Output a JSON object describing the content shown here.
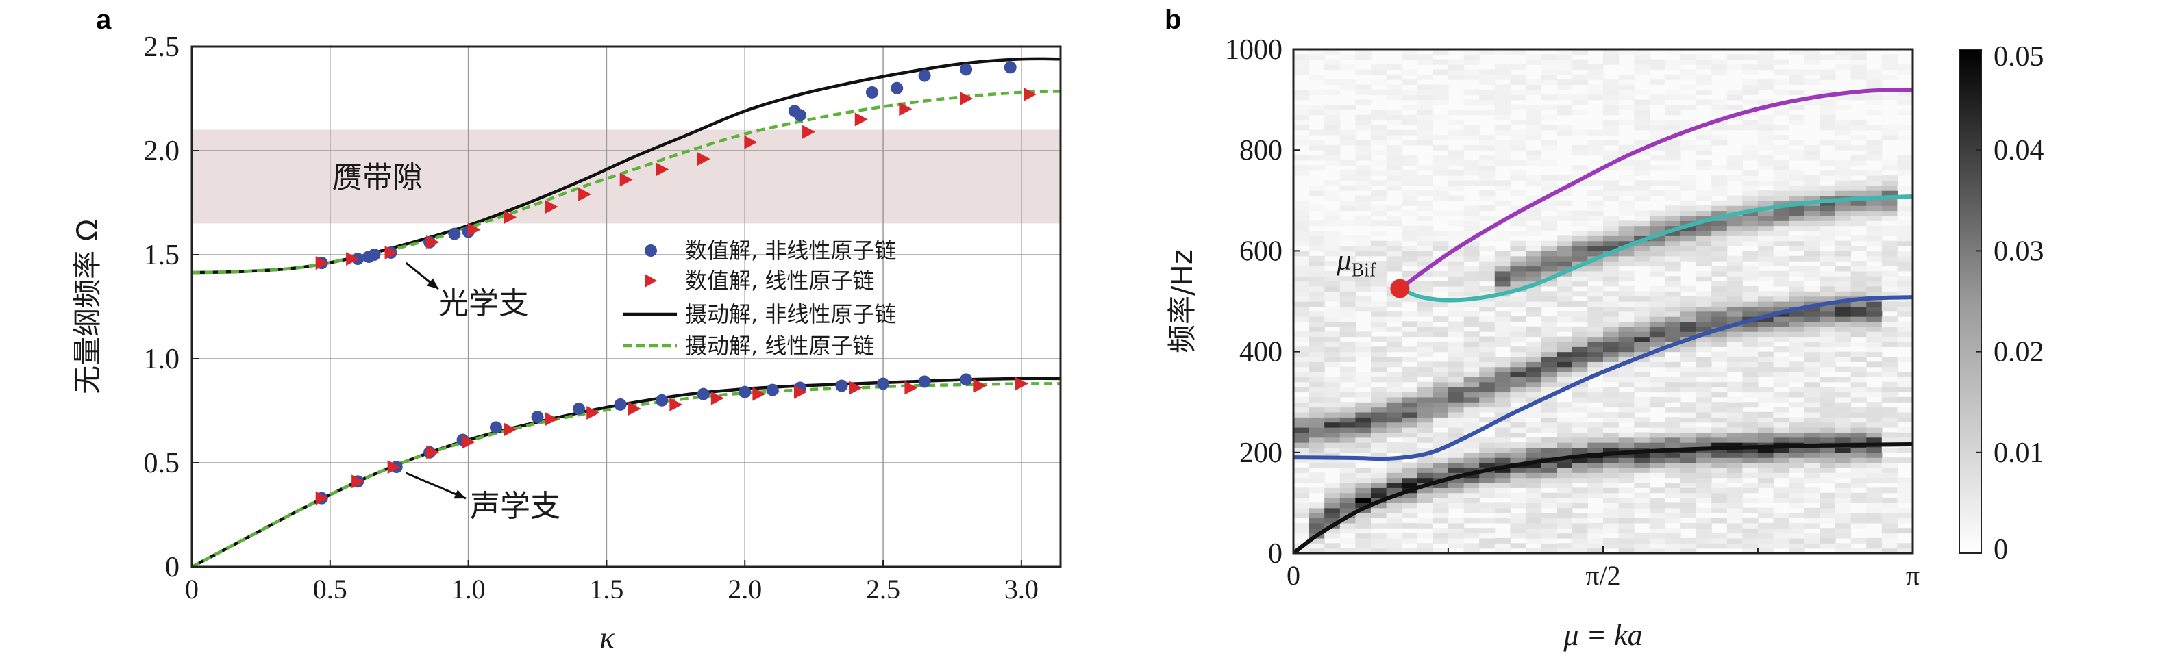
{
  "colors": {
    "nonlinear_numeric": "#3a4fa0",
    "linear_numeric": "#d9262a",
    "nonlinear_perturb": "#111111",
    "linear_perturb": "#5db33a",
    "gap_band": "#eadede",
    "purple_curve": "#9b39b8",
    "cyan_curve": "#3fb6b0",
    "blue_curve": "#3953a8",
    "black_curve": "#111111",
    "bif_point": "#e02a2a"
  },
  "chart_data": [
    {
      "panel": "a",
      "type": "line",
      "title": "",
      "xlabel": "κ",
      "ylabel": "无量纲频率 Ω",
      "xlim": [
        0,
        3.14159
      ],
      "ylim": [
        0,
        2.5
      ],
      "xticks": [
        0,
        0.5,
        1.0,
        1.5,
        2.0,
        2.5,
        3.0
      ],
      "xtick_labels": [
        "0",
        "0.5",
        "1.0",
        "1.5",
        "2.0",
        "2.5",
        "3.0"
      ],
      "yticks": [
        0,
        0.5,
        1.0,
        1.5,
        2.0,
        2.5
      ],
      "ytick_labels": [
        "0",
        "0.5",
        "1.0",
        "1.5",
        "2.0",
        "2.5"
      ],
      "grid": true,
      "gap_band": {
        "label": "赝带隙",
        "y_range": [
          1.65,
          2.1
        ]
      },
      "annotations": [
        {
          "text": "光学支",
          "points_to": [
            0.75,
            1.48
          ]
        },
        {
          "text": "声学支",
          "points_to": [
            0.75,
            0.47
          ]
        }
      ],
      "legend_position": "center-right",
      "series": [
        {
          "name": "摄动解, 非线性原子链",
          "style": "solid",
          "branch": "optical",
          "x": [
            0,
            0.2,
            0.4,
            0.6,
            0.8,
            1.0,
            1.2,
            1.4,
            1.6,
            1.8,
            2.0,
            2.2,
            2.4,
            2.6,
            2.8,
            3.0,
            3.14
          ],
          "y": [
            1.414,
            1.42,
            1.44,
            1.49,
            1.56,
            1.64,
            1.74,
            1.85,
            1.97,
            2.08,
            2.19,
            2.27,
            2.33,
            2.38,
            2.42,
            2.44,
            2.44
          ]
        },
        {
          "name": "摄动解, 非线性原子链",
          "style": "solid",
          "branch": "acoustic",
          "x": [
            0,
            0.2,
            0.4,
            0.6,
            0.8,
            1.0,
            1.2,
            1.4,
            1.6,
            1.8,
            2.0,
            2.2,
            2.4,
            2.6,
            2.8,
            3.0,
            3.14
          ],
          "y": [
            0,
            0.14,
            0.28,
            0.41,
            0.52,
            0.61,
            0.68,
            0.74,
            0.79,
            0.83,
            0.855,
            0.87,
            0.88,
            0.89,
            0.9,
            0.905,
            0.905
          ]
        },
        {
          "name": "摄动解, 线性原子链",
          "style": "dashed",
          "branch": "optical",
          "x": [
            0,
            0.2,
            0.4,
            0.6,
            0.8,
            1.0,
            1.2,
            1.4,
            1.6,
            1.8,
            2.0,
            2.2,
            2.4,
            2.6,
            2.8,
            3.0,
            3.14
          ],
          "y": [
            1.414,
            1.42,
            1.44,
            1.49,
            1.55,
            1.63,
            1.72,
            1.82,
            1.91,
            2.0,
            2.08,
            2.14,
            2.19,
            2.23,
            2.26,
            2.28,
            2.285
          ]
        },
        {
          "name": "摄动解, 线性原子链",
          "style": "dashed",
          "branch": "acoustic",
          "x": [
            0,
            0.2,
            0.4,
            0.6,
            0.8,
            1.0,
            1.2,
            1.4,
            1.6,
            1.8,
            2.0,
            2.2,
            2.4,
            2.6,
            2.8,
            3.0,
            3.14
          ],
          "y": [
            0,
            0.14,
            0.28,
            0.41,
            0.52,
            0.605,
            0.675,
            0.73,
            0.775,
            0.81,
            0.835,
            0.85,
            0.86,
            0.87,
            0.875,
            0.88,
            0.88
          ]
        },
        {
          "name": "数值解, 非线性原子链",
          "marker": "circle",
          "x": [
            0.47,
            0.6,
            0.64,
            0.66,
            0.72,
            0.86,
            0.95,
            1.0,
            2.18,
            2.2,
            2.46,
            2.55,
            2.65,
            2.8,
            2.96,
            0.47,
            0.6,
            0.74,
            0.86,
            0.98,
            1.1,
            1.25,
            1.4,
            1.55,
            1.7,
            1.85,
            2.0,
            2.1,
            2.2,
            2.35,
            2.5,
            2.65,
            2.8
          ],
          "y": [
            1.46,
            1.48,
            1.49,
            1.5,
            1.51,
            1.56,
            1.6,
            1.61,
            2.19,
            2.17,
            2.28,
            2.3,
            2.36,
            2.39,
            2.4,
            0.33,
            0.41,
            0.48,
            0.55,
            0.61,
            0.67,
            0.72,
            0.76,
            0.78,
            0.8,
            0.83,
            0.84,
            0.85,
            0.86,
            0.87,
            0.88,
            0.89,
            0.9
          ]
        },
        {
          "name": "数值解, 线性原子链",
          "marker": "triangle-right",
          "x": [
            0.47,
            0.58,
            0.72,
            0.87,
            1.02,
            1.15,
            1.3,
            1.42,
            1.57,
            1.7,
            1.85,
            2.02,
            2.23,
            2.42,
            2.58,
            2.8,
            3.03,
            0.47,
            0.6,
            0.73,
            0.87,
            1.0,
            1.15,
            1.3,
            1.45,
            1.6,
            1.75,
            1.9,
            2.05,
            2.2,
            2.4,
            2.6,
            2.85,
            3.0
          ],
          "y": [
            1.46,
            1.48,
            1.51,
            1.56,
            1.62,
            1.68,
            1.73,
            1.79,
            1.86,
            1.91,
            1.96,
            2.04,
            2.09,
            2.15,
            2.2,
            2.25,
            2.27,
            0.33,
            0.41,
            0.48,
            0.55,
            0.6,
            0.66,
            0.71,
            0.74,
            0.76,
            0.78,
            0.81,
            0.83,
            0.84,
            0.86,
            0.86,
            0.87,
            0.88
          ]
        }
      ]
    },
    {
      "panel": "b",
      "type": "heatmap",
      "title": "",
      "xlabel": "μ = ka",
      "ylabel": "频率/Hz",
      "xlim": [
        0,
        3.14159
      ],
      "ylim": [
        0,
        1000
      ],
      "xticks": [
        0,
        1.5708,
        3.14159
      ],
      "xtick_labels": [
        "0",
        "π/2",
        "π"
      ],
      "yticks": [
        0,
        200,
        400,
        600,
        800,
        1000
      ],
      "ytick_labels": [
        "0",
        "200",
        "400",
        "600",
        "800",
        "1000"
      ],
      "colorbar": {
        "min": 0,
        "max": 0.05,
        "ticks": [
          0,
          0.01,
          0.02,
          0.03,
          0.04,
          0.05
        ],
        "tick_labels": [
          "0",
          "0.01",
          "0.02",
          "0.03",
          "0.04",
          "0.05"
        ],
        "colormap": "gray_r"
      },
      "bifurcation": {
        "label": "μ",
        "label_sub": "Bif",
        "x": 0.54,
        "y": 525
      },
      "curves": [
        {
          "name": "purple",
          "x": [
            0.54,
            0.8,
            1.1,
            1.4,
            1.7,
            2.0,
            2.3,
            2.6,
            2.9,
            3.14
          ],
          "y": [
            525,
            598,
            668,
            730,
            790,
            838,
            876,
            902,
            917,
            920
          ]
        },
        {
          "name": "cyan",
          "x": [
            0.54,
            0.65,
            0.8,
            1.0,
            1.2,
            1.4,
            1.6,
            1.8,
            2.0,
            2.2,
            2.5,
            2.8,
            3.14
          ],
          "y": [
            525,
            508,
            502,
            510,
            530,
            562,
            595,
            625,
            650,
            670,
            690,
            702,
            708
          ]
        },
        {
          "name": "blue",
          "x": [
            0,
            0.3,
            0.5,
            0.7,
            0.9,
            1.1,
            1.3,
            1.5,
            1.7,
            1.9,
            2.1,
            2.3,
            2.5,
            2.7,
            2.9,
            3.14
          ],
          "y": [
            190,
            189,
            188,
            200,
            235,
            275,
            312,
            348,
            380,
            410,
            437,
            460,
            480,
            495,
            505,
            508
          ]
        },
        {
          "name": "black",
          "x": [
            0,
            0.1,
            0.2,
            0.35,
            0.5,
            0.7,
            0.9,
            1.1,
            1.4,
            1.7,
            2.0,
            2.3,
            2.6,
            2.9,
            3.14
          ],
          "y": [
            0,
            30,
            55,
            88,
            112,
            138,
            158,
            173,
            190,
            200,
            206,
            210,
            213,
            215,
            216
          ]
        }
      ],
      "heatmap_bands": [
        {
          "note": "acoustic",
          "x": [
            0.05,
            0.25,
            0.5,
            0.8,
            1.1,
            1.4,
            1.8,
            2.2,
            2.6,
            3.0
          ],
          "y": [
            40,
            90,
            125,
            155,
            175,
            190,
            200,
            208,
            212,
            215
          ],
          "intensity": 0.9
        },
        {
          "note": "middle",
          "x": [
            0.0,
            0.3,
            0.6,
            0.9,
            1.2,
            1.5,
            1.8,
            2.1,
            2.4,
            2.7,
            3.0
          ],
          "y": [
            240,
            255,
            285,
            320,
            360,
            400,
            430,
            455,
            470,
            480,
            485
          ],
          "intensity": 0.75
        },
        {
          "note": "upper",
          "x": [
            1.0,
            1.3,
            1.6,
            1.9,
            2.2,
            2.5,
            2.8,
            3.1
          ],
          "y": [
            540,
            575,
            610,
            640,
            660,
            680,
            695,
            705
          ],
          "intensity": 0.65
        }
      ]
    }
  ],
  "panel_a": {
    "letter": "a",
    "gap_label": "赝带隙",
    "optical_label": "光学支",
    "acoustic_label": "声学支",
    "legend": [
      {
        "label": "数值解, 非线性原子链",
        "key": "circle"
      },
      {
        "label": "数值解, 线性原子链",
        "key": "triangle"
      },
      {
        "label": "摄动解, 非线性原子链",
        "key": "solid"
      },
      {
        "label": "摄动解, 线性原子链",
        "key": "dashed"
      }
    ]
  },
  "panel_b": {
    "letter": "b"
  }
}
